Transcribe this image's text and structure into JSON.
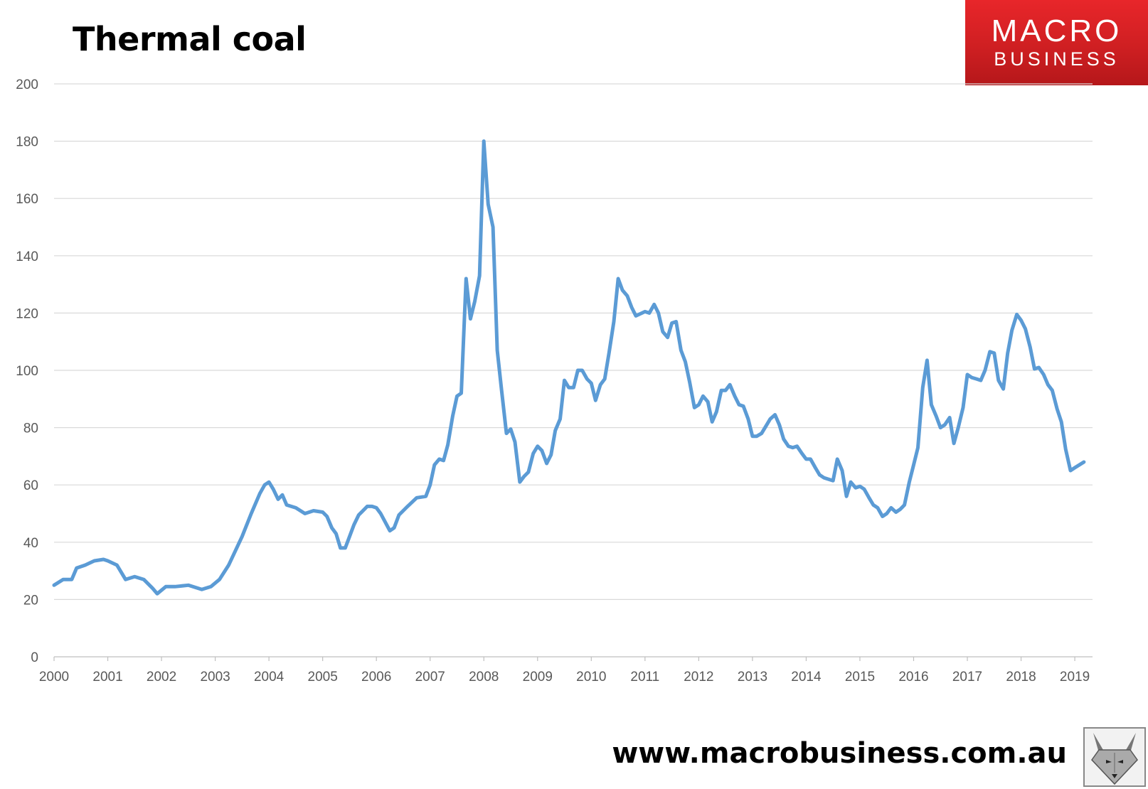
{
  "header": {
    "title": "Thermal coal"
  },
  "logo": {
    "line1": "MACRO",
    "line2": "BUSINESS"
  },
  "footer": {
    "url": "www.macrobusiness.com.au"
  },
  "icons": {
    "mascot": "fox-mascot-icon"
  },
  "colors": {
    "line": "#5b9bd5",
    "grid": "#d9d9d9",
    "axis_text": "#595959",
    "logo_bg": "#d92124"
  },
  "chart_data": {
    "type": "line",
    "title": "Thermal coal",
    "xlabel": "",
    "ylabel": "",
    "ylim": [
      0,
      200
    ],
    "xlim": [
      2000,
      2019.33
    ],
    "yticks": [
      0,
      20,
      40,
      60,
      80,
      100,
      120,
      140,
      160,
      180,
      200
    ],
    "xticks": [
      "2000",
      "2001",
      "2002",
      "2003",
      "2004",
      "2005",
      "2006",
      "2007",
      "2008",
      "2009",
      "2010",
      "2011",
      "2012",
      "2013",
      "2014",
      "2015",
      "2016",
      "2017",
      "2018",
      "2019"
    ],
    "grid": true,
    "legend": "none",
    "series": [
      {
        "points": [
          [
            2000.0,
            25
          ],
          [
            2000.17,
            27
          ],
          [
            2000.33,
            27
          ],
          [
            2000.42,
            31
          ],
          [
            2000.58,
            32
          ],
          [
            2000.75,
            33.5
          ],
          [
            2000.92,
            34
          ],
          [
            2001.0,
            33.5
          ],
          [
            2001.17,
            32
          ],
          [
            2001.33,
            27
          ],
          [
            2001.5,
            28
          ],
          [
            2001.67,
            27
          ],
          [
            2001.83,
            24
          ],
          [
            2001.92,
            22
          ],
          [
            2002.08,
            24.5
          ],
          [
            2002.25,
            24.5
          ],
          [
            2002.5,
            25
          ],
          [
            2002.75,
            23.5
          ],
          [
            2002.92,
            24.5
          ],
          [
            2003.08,
            27
          ],
          [
            2003.25,
            32
          ],
          [
            2003.5,
            42
          ],
          [
            2003.67,
            50
          ],
          [
            2003.83,
            57
          ],
          [
            2003.92,
            60
          ],
          [
            2004.0,
            61
          ],
          [
            2004.08,
            58.5
          ],
          [
            2004.17,
            55
          ],
          [
            2004.25,
            56.5
          ],
          [
            2004.33,
            53
          ],
          [
            2004.5,
            52
          ],
          [
            2004.67,
            50
          ],
          [
            2004.83,
            51
          ],
          [
            2005.0,
            50.5
          ],
          [
            2005.08,
            49
          ],
          [
            2005.17,
            45
          ],
          [
            2005.25,
            43
          ],
          [
            2005.33,
            38
          ],
          [
            2005.42,
            38
          ],
          [
            2005.58,
            46
          ],
          [
            2005.67,
            49.5
          ],
          [
            2005.83,
            52.5
          ],
          [
            2005.92,
            52.5
          ],
          [
            2006.0,
            52
          ],
          [
            2006.08,
            50
          ],
          [
            2006.25,
            44
          ],
          [
            2006.33,
            45
          ],
          [
            2006.42,
            49.5
          ],
          [
            2006.58,
            52.5
          ],
          [
            2006.75,
            55.5
          ],
          [
            2006.92,
            56
          ],
          [
            2007.0,
            60
          ],
          [
            2007.08,
            67
          ],
          [
            2007.17,
            69
          ],
          [
            2007.25,
            68.5
          ],
          [
            2007.33,
            74
          ],
          [
            2007.42,
            84
          ],
          [
            2007.5,
            91
          ],
          [
            2007.58,
            92
          ],
          [
            2007.67,
            132
          ],
          [
            2007.75,
            118
          ],
          [
            2007.83,
            124
          ],
          [
            2007.92,
            133
          ],
          [
            2008.0,
            180
          ],
          [
            2008.08,
            158
          ],
          [
            2008.17,
            150
          ],
          [
            2008.25,
            107
          ],
          [
            2008.33,
            93
          ],
          [
            2008.42,
            78
          ],
          [
            2008.5,
            79.5
          ],
          [
            2008.58,
            75
          ],
          [
            2008.67,
            61
          ],
          [
            2008.75,
            63
          ],
          [
            2008.83,
            64.5
          ],
          [
            2008.92,
            71
          ],
          [
            2009.0,
            73.5
          ],
          [
            2009.08,
            72
          ],
          [
            2009.17,
            67.5
          ],
          [
            2009.25,
            70.5
          ],
          [
            2009.33,
            79
          ],
          [
            2009.42,
            83
          ],
          [
            2009.5,
            96.5
          ],
          [
            2009.58,
            94
          ],
          [
            2009.67,
            94
          ],
          [
            2009.75,
            100
          ],
          [
            2009.83,
            100
          ],
          [
            2009.92,
            97
          ],
          [
            2010.0,
            95.5
          ],
          [
            2010.08,
            89.5
          ],
          [
            2010.17,
            95
          ],
          [
            2010.25,
            97
          ],
          [
            2010.33,
            106
          ],
          [
            2010.42,
            117
          ],
          [
            2010.5,
            132
          ],
          [
            2010.58,
            128
          ],
          [
            2010.67,
            126
          ],
          [
            2010.75,
            122
          ],
          [
            2010.83,
            119
          ],
          [
            2011.0,
            120.5
          ],
          [
            2011.08,
            120
          ],
          [
            2011.17,
            123
          ],
          [
            2011.25,
            120
          ],
          [
            2011.33,
            113.5
          ],
          [
            2011.42,
            111.5
          ],
          [
            2011.5,
            116.5
          ],
          [
            2011.58,
            117
          ],
          [
            2011.67,
            107
          ],
          [
            2011.75,
            103
          ],
          [
            2011.83,
            96
          ],
          [
            2011.92,
            87
          ],
          [
            2012.0,
            88
          ],
          [
            2012.08,
            91
          ],
          [
            2012.17,
            89
          ],
          [
            2012.25,
            82
          ],
          [
            2012.33,
            85.5
          ],
          [
            2012.42,
            93
          ],
          [
            2012.5,
            93
          ],
          [
            2012.58,
            95
          ],
          [
            2012.67,
            91
          ],
          [
            2012.75,
            88
          ],
          [
            2012.83,
            87.5
          ],
          [
            2012.92,
            83
          ],
          [
            2013.0,
            77
          ],
          [
            2013.08,
            77
          ],
          [
            2013.17,
            78
          ],
          [
            2013.25,
            80.5
          ],
          [
            2013.33,
            83
          ],
          [
            2013.42,
            84.5
          ],
          [
            2013.5,
            81
          ],
          [
            2013.58,
            76
          ],
          [
            2013.67,
            73.5
          ],
          [
            2013.75,
            73
          ],
          [
            2013.83,
            73.5
          ],
          [
            2013.92,
            71
          ],
          [
            2014.0,
            69
          ],
          [
            2014.08,
            69
          ],
          [
            2014.17,
            66
          ],
          [
            2014.25,
            63.5
          ],
          [
            2014.33,
            62.5
          ],
          [
            2014.5,
            61.5
          ],
          [
            2014.58,
            69
          ],
          [
            2014.67,
            65
          ],
          [
            2014.75,
            56
          ],
          [
            2014.83,
            61
          ],
          [
            2014.92,
            59
          ],
          [
            2015.0,
            59.5
          ],
          [
            2015.08,
            58.5
          ],
          [
            2015.17,
            55.5
          ],
          [
            2015.25,
            53
          ],
          [
            2015.33,
            52
          ],
          [
            2015.42,
            49
          ],
          [
            2015.5,
            50
          ],
          [
            2015.58,
            52
          ],
          [
            2015.67,
            50.5
          ],
          [
            2015.75,
            51.5
          ],
          [
            2015.83,
            53
          ],
          [
            2015.92,
            61
          ],
          [
            2016.0,
            67
          ],
          [
            2016.08,
            73
          ],
          [
            2016.17,
            94
          ],
          [
            2016.25,
            103.5
          ],
          [
            2016.33,
            88
          ],
          [
            2016.42,
            84
          ],
          [
            2016.5,
            80
          ],
          [
            2016.58,
            81
          ],
          [
            2016.67,
            83.5
          ],
          [
            2016.75,
            74.5
          ],
          [
            2016.83,
            80
          ],
          [
            2016.92,
            87
          ],
          [
            2017.0,
            98.5
          ],
          [
            2017.08,
            97.5
          ],
          [
            2017.17,
            97
          ],
          [
            2017.25,
            96.5
          ],
          [
            2017.33,
            100
          ],
          [
            2017.42,
            106.5
          ],
          [
            2017.5,
            106
          ],
          [
            2017.58,
            96.5
          ],
          [
            2017.67,
            93.5
          ],
          [
            2017.75,
            106
          ],
          [
            2017.83,
            114
          ],
          [
            2017.92,
            119.5
          ],
          [
            2018.0,
            117.5
          ],
          [
            2018.08,
            114.5
          ],
          [
            2018.17,
            108
          ],
          [
            2018.25,
            100.5
          ],
          [
            2018.33,
            101
          ],
          [
            2018.42,
            98.5
          ],
          [
            2018.5,
            95
          ],
          [
            2018.58,
            93
          ],
          [
            2018.67,
            86.5
          ],
          [
            2018.75,
            82
          ],
          [
            2018.83,
            72.5
          ],
          [
            2018.92,
            65
          ],
          [
            2019.0,
            66
          ],
          [
            2019.17,
            68
          ]
        ]
      }
    ]
  }
}
